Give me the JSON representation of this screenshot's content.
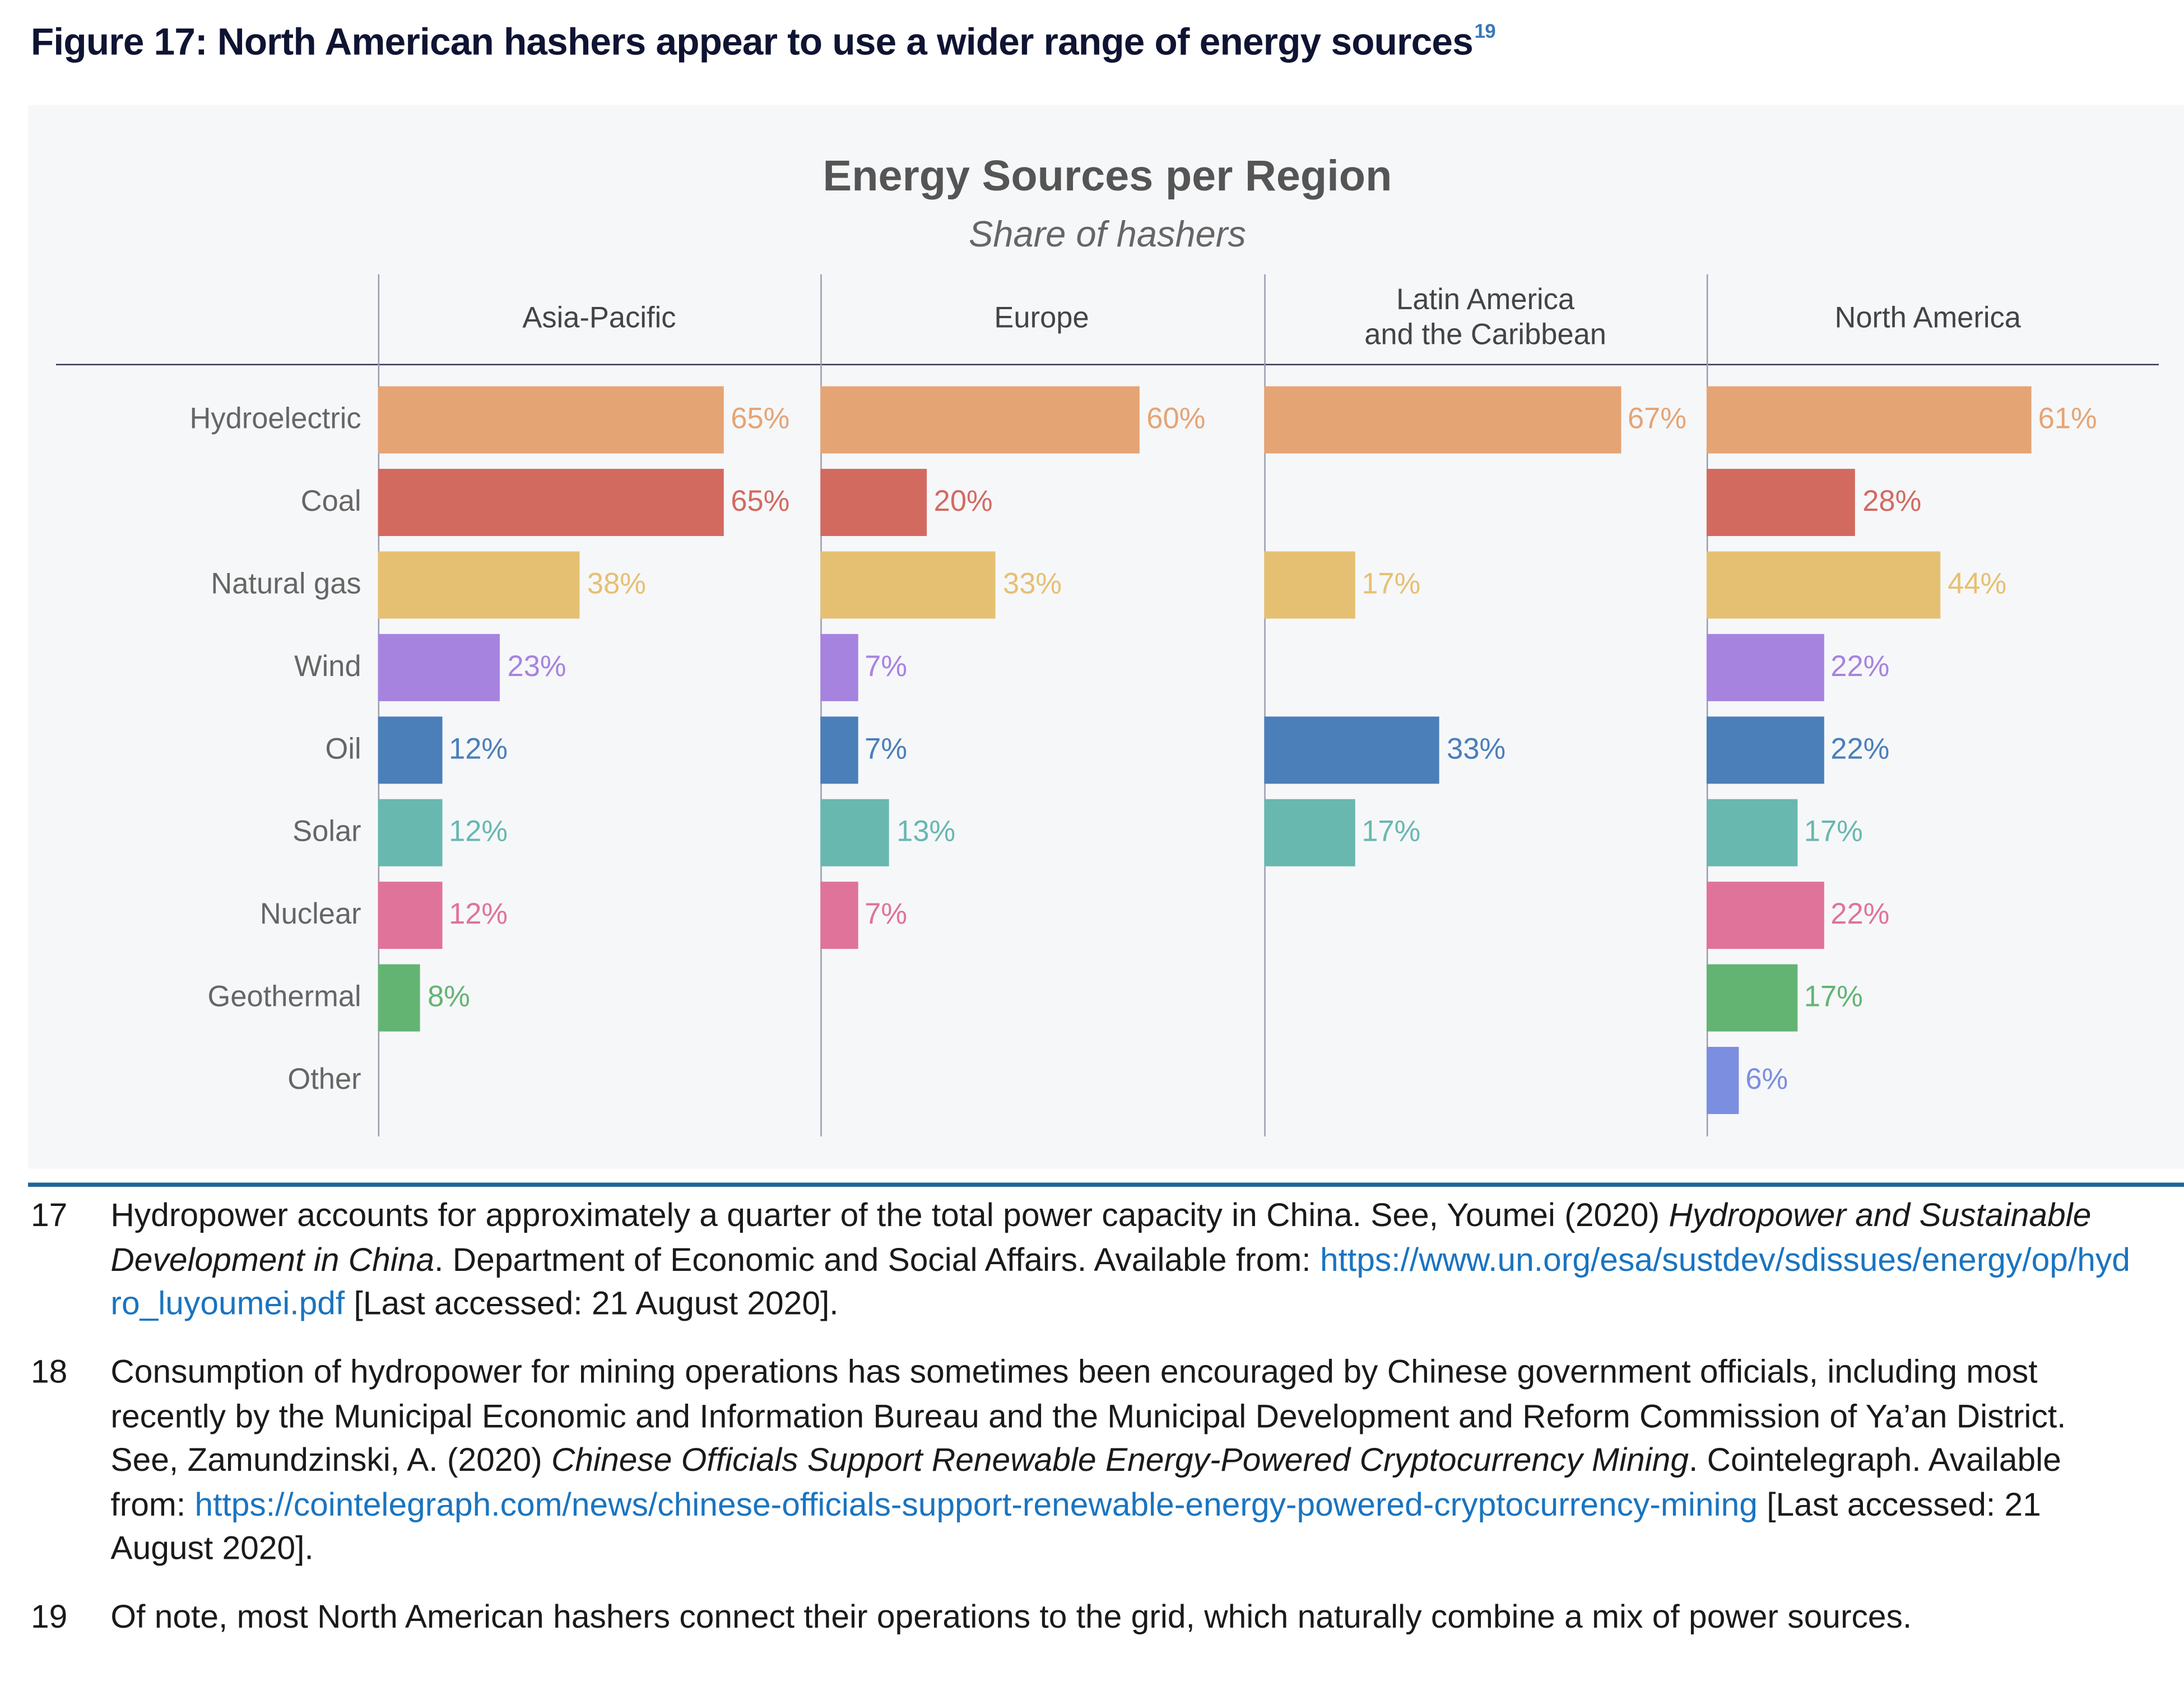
{
  "figure_title": "Figure 17: North American hashers appear to use a wider range of energy sources",
  "figure_title_footnote_ref": "19",
  "chart_data": {
    "type": "bar",
    "orientation": "horizontal",
    "layout": "small-multiples",
    "title": "Energy Sources per Region",
    "subtitle": "Share of hashers",
    "unit": "%",
    "xlim": [
      0,
      100
    ],
    "grid": false,
    "categories": [
      "Hydroelectric",
      "Coal",
      "Natural gas",
      "Wind",
      "Oil",
      "Solar",
      "Nuclear",
      "Geothermal",
      "Other"
    ],
    "category_colors": [
      "#e5a474",
      "#d36a60",
      "#e6c072",
      "#a783e0",
      "#4a7fba",
      "#68b8b0",
      "#e07399",
      "#63b473",
      "#7c8ee0"
    ],
    "panels": [
      {
        "region": "Asia-Pacific",
        "values": [
          65,
          65,
          38,
          23,
          12,
          12,
          12,
          8,
          null
        ],
        "labels": [
          "65%",
          "65%",
          "38%",
          "23%",
          "12%",
          "12%",
          "12%",
          "8%",
          null
        ]
      },
      {
        "region": "Europe",
        "values": [
          60,
          20,
          33,
          7,
          7,
          13,
          7,
          null,
          null
        ],
        "labels": [
          "60%",
          "20%",
          "33%",
          "7%",
          "7%",
          "13%",
          "7%",
          null,
          null
        ]
      },
      {
        "region": "Latin America\nand the Caribbean",
        "values": [
          67,
          null,
          17,
          null,
          33,
          17,
          null,
          null,
          null
        ],
        "labels": [
          "67%",
          null,
          "17%",
          null,
          "33%",
          "17%",
          null,
          null,
          null
        ]
      },
      {
        "region": "North America",
        "values": [
          61,
          28,
          44,
          22,
          22,
          17,
          22,
          17,
          6
        ],
        "labels": [
          "61%",
          "28%",
          "44%",
          "22%",
          "22%",
          "17%",
          "22%",
          "17%",
          "6%"
        ]
      }
    ]
  },
  "footnotes": [
    {
      "num": "17",
      "segments": [
        {
          "t": "Hydropower accounts for approximately a quarter of the total power capacity in China. See, Youmei (2020) "
        },
        {
          "t": "Hydropower and Sustainable Development in China",
          "style": "italic"
        },
        {
          "t": ". Department of Economic and Social Affairs. Available from: "
        },
        {
          "t": "https://www.un.org/esa/sustdev/sdissues/energy/op/hydro_luyoumei.pdf",
          "style": "link"
        },
        {
          "t": " [Last accessed: 21 August 2020]."
        }
      ]
    },
    {
      "num": "18",
      "segments": [
        {
          "t": "Consumption of hydropower for mining operations has sometimes been encouraged by Chinese government officials, including most recently by the Municipal Economic and Information Bureau and the Municipal Development and Reform Commission of Ya’an District. See, Zamundzinski, A. (2020) "
        },
        {
          "t": "Chinese Officials Support Renewable Energy-Powered Cryptocurrency Mining",
          "style": "italic"
        },
        {
          "t": ". Cointelegraph. Available from: "
        },
        {
          "t": "https://cointelegraph.com/news/chinese-officials-support-renewable-energy-powered-cryptocurrency-mining",
          "style": "link"
        },
        {
          "t": " [Last accessed: 21 August 2020]."
        }
      ]
    },
    {
      "num": "19",
      "segments": [
        {
          "t": "Of note, most North American hashers connect their operations to the grid, which naturally combine a mix of power sources."
        }
      ]
    }
  ],
  "colors": {
    "title": "#0f1433",
    "rule": "#1d6597",
    "link": "#1a74c0",
    "panel_bg": "#f6f7f9"
  }
}
